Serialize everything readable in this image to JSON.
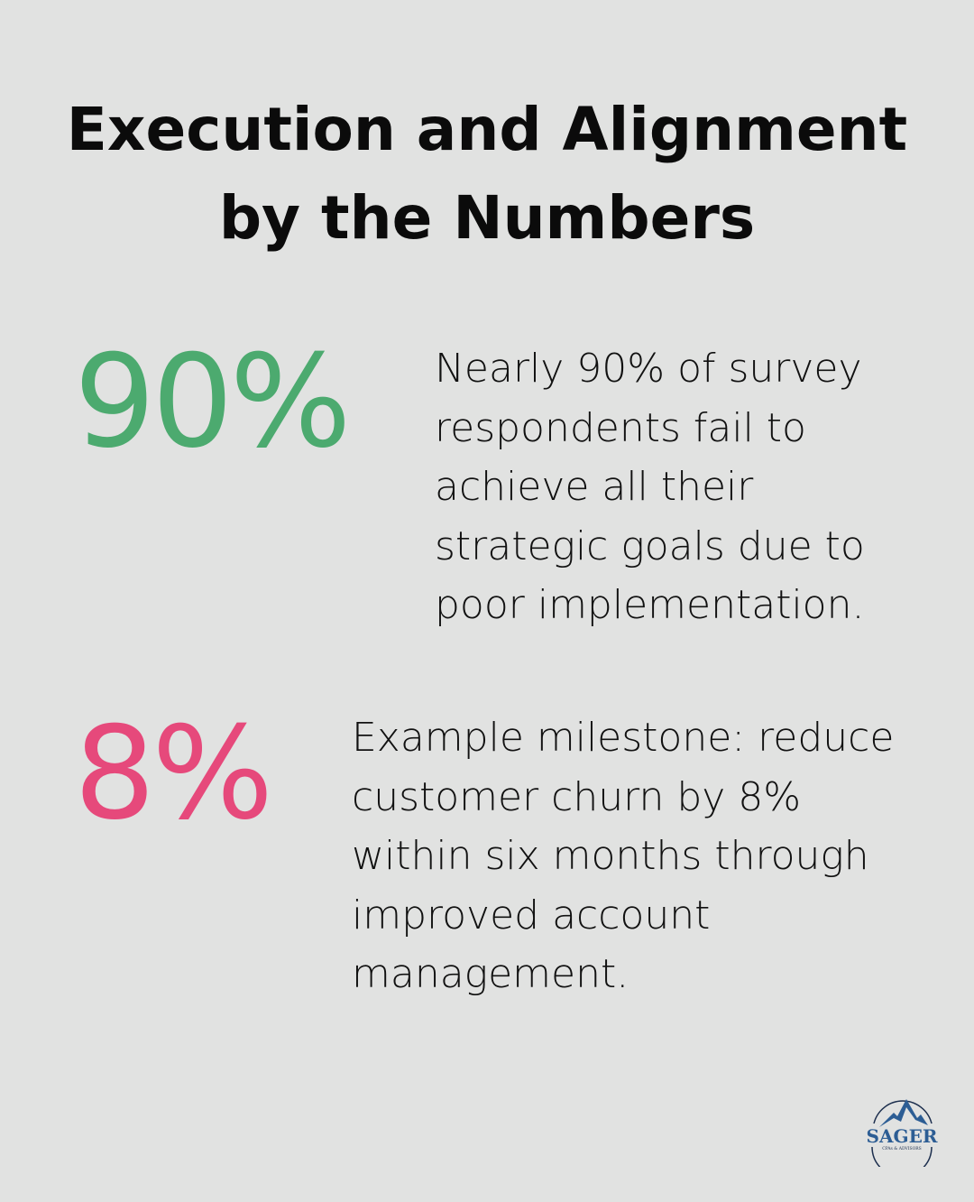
{
  "title": {
    "line1": "Execution and Alignment",
    "line2": "by the Numbers"
  },
  "stats": [
    {
      "value": "90%",
      "color": "#4caa6f",
      "description": "Nearly 90% of survey respondents fail to achieve all their strategic goals due to poor implementation."
    },
    {
      "value": "8%",
      "color": "#e6497b",
      "description": "Example milestone: reduce customer churn by 8% within six months through improved account management."
    }
  ],
  "logo": {
    "name": "SAGER",
    "tagline": "CPAs & ADVISORS"
  }
}
